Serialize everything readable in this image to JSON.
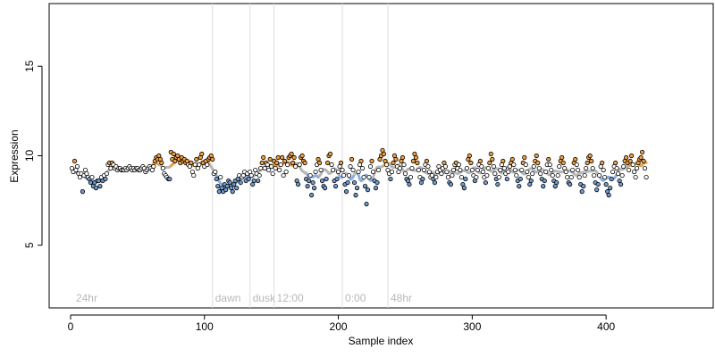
{
  "chart_data": {
    "type": "scatter",
    "xlabel": "Sample index",
    "ylabel": "Expression",
    "xlim": [
      -16,
      480
    ],
    "ylim": [
      1.5,
      18.5
    ],
    "x_ticks": [
      0,
      100,
      200,
      300,
      400
    ],
    "y_ticks": [
      5,
      10,
      15
    ],
    "grid": false,
    "legend": "none",
    "colors": {
      "point_stroke": "#000000",
      "high_fill": "#f0a040",
      "low_fill": "#6f9ad0",
      "trend_high": "#e8a050",
      "trend_low": "#8aaee0",
      "trend_neutral": "#b8b8b8",
      "divider": "#dddddd",
      "annotation": "#b8b8b8"
    },
    "annotations": [
      {
        "x": 2,
        "label": "24hr",
        "divider": false
      },
      {
        "x": 106,
        "label": "dawn",
        "divider": true
      },
      {
        "x": 134,
        "label": "dusk",
        "divider": true
      },
      {
        "x": 152,
        "label": "12:00",
        "divider": true
      },
      {
        "x": 203,
        "label": "0:00",
        "divider": true
      },
      {
        "x": 237,
        "label": "48hr",
        "divider": true
      }
    ],
    "series": [
      {
        "x_start": 1,
        "values": [
          9.3,
          9.1,
          9.7,
          9.2,
          9.4,
          9.0,
          8.8,
          9.0,
          8.0,
          8.9,
          9.2,
          9.0,
          8.8,
          8.7,
          8.5,
          8.8,
          8.3,
          8.5,
          8.2,
          8.6,
          8.6,
          8.3,
          8.8,
          8.6,
          8.9,
          8.7,
          9.0,
          9.5,
          9.6,
          9.3,
          9.6,
          9.5,
          9.3,
          9.4,
          9.2,
          9.3,
          9.3,
          9.2,
          9.2,
          9.2,
          9.3,
          9.2,
          9.3,
          9.4,
          9.3,
          9.2,
          9.3,
          9.2,
          9.3,
          9.3,
          9.2,
          9.2,
          9.3,
          9.4,
          9.3,
          9.1,
          9.2,
          9.3,
          9.4,
          9.3,
          9.2,
          9.4,
          9.7,
          9.9,
          9.8,
          10.0,
          9.8,
          9.6,
          9.3,
          9.0,
          8.9,
          8.8,
          8.7,
          8.7,
          10.2,
          9.8,
          10.1,
          9.7,
          9.9,
          10.0,
          9.8,
          9.6,
          9.9,
          9.7,
          9.8,
          9.6,
          9.7,
          9.5,
          9.4,
          9.6,
          9.1,
          8.9,
          9.5,
          9.8,
          9.3,
          9.5,
          9.9,
          10.1,
          9.6,
          9.4,
          9.7,
          9.5,
          9.8,
          9.9,
          10.0,
          9.8,
          9.0,
          9.1,
          8.7,
          8.3,
          8.0,
          8.8,
          8.2,
          8.0,
          8.4,
          8.1,
          8.3,
          8.6,
          8.5,
          8.2,
          8.0,
          8.4,
          8.6,
          8.2,
          8.7,
          8.9,
          8.5,
          8.8,
          8.9,
          9.1,
          8.6,
          9.0,
          8.7,
          9.1,
          8.9,
          8.4,
          8.6,
          9.2,
          9.0,
          8.6,
          8.9,
          9.3,
          9.6,
          9.9,
          9.3,
          9.6,
          9.5,
          9.2,
          9.8,
          9.4,
          9.0,
          9.7,
          9.3,
          9.6,
          9.9,
          9.2,
          9.5,
          9.9,
          8.9,
          9.7,
          9.1,
          9.5,
          9.9,
          10.0,
          10.1,
          9.6,
          9.9,
          9.4,
          8.6,
          8.4,
          9.5,
          9.9,
          10.0,
          9.7,
          9.6,
          8.7,
          8.3,
          8.6,
          8.9,
          7.8,
          8.5,
          8.2,
          9.1,
          9.5,
          9.8,
          9.6,
          9.2,
          8.6,
          8.3,
          8.2,
          8.7,
          9.6,
          10.0,
          10.1,
          9.5,
          9.2,
          8.6,
          8.3,
          8.7,
          9.1,
          9.4,
          9.6,
          9.2,
          8.9,
          8.4,
          8.0,
          8.5,
          8.9,
          9.4,
          9.8,
          9.2,
          8.5,
          7.8,
          8.2,
          9.1,
          9.5,
          9.7,
          9.3,
          8.8,
          8.3,
          7.3,
          8.1,
          8.8,
          9.4,
          9.7,
          9.1,
          8.6,
          8.2,
          8.5,
          9.2,
          9.8,
          10.0,
          10.3,
          10.1,
          9.7,
          9.5,
          9.2,
          9.0,
          8.7,
          9.1,
          9.6,
          10.0,
          9.8,
          9.4,
          9.1,
          9.3,
          9.7,
          9.9,
          9.5,
          9.0,
          8.7,
          8.6,
          8.4,
          8.8,
          9.3,
          9.7,
          10.1,
          9.9,
          9.6,
          9.2,
          8.8,
          8.5,
          8.7,
          9.2,
          9.5,
          9.7,
          9.4,
          9.1,
          8.8,
          8.9,
          8.7,
          8.5,
          8.8,
          9.1,
          9.4,
          9.2,
          9.0,
          9.3,
          9.6,
          9.4,
          9.1,
          8.8,
          8.5,
          8.4,
          8.9,
          9.2,
          9.5,
          9.6,
          9.3,
          9.5,
          9.2,
          8.8,
          8.4,
          8.2,
          8.7,
          9.3,
          9.8,
          10.0,
          9.6,
          9.2,
          8.9,
          8.6,
          8.8,
          9.2,
          9.5,
          9.7,
          9.4,
          9.1,
          8.8,
          8.5,
          8.9,
          9.3,
          9.6,
          10.1,
          9.8,
          9.4,
          9.0,
          8.7,
          8.4,
          8.8,
          9.2,
          9.5,
          9.7,
          9.3,
          9.0,
          8.7,
          9.1,
          9.4,
          9.6,
          9.8,
          9.5,
          9.2,
          8.9,
          8.6,
          8.3,
          8.7,
          9.2,
          9.6,
          9.9,
          9.5,
          9.1,
          8.8,
          8.4,
          8.6,
          9.0,
          9.4,
          9.7,
          10.0,
          9.6,
          9.3,
          9.0,
          8.7,
          8.3,
          8.6,
          9.1,
          9.5,
          9.8,
          9.5,
          9.2,
          8.9,
          8.6,
          8.3,
          8.5,
          8.9,
          9.4,
          9.7,
          9.9,
          9.6,
          9.3,
          9.1,
          8.8,
          8.5,
          8.4,
          8.8,
          9.2,
          9.6,
          9.8,
          9.5,
          9.2,
          8.8,
          8.4,
          8.0,
          8.3,
          8.9,
          9.3,
          9.6,
          9.9,
          10.0,
          9.7,
          9.3,
          8.9,
          8.5,
          8.1,
          8.4,
          8.9,
          9.4,
          9.6,
          9.2,
          8.8,
          8.4,
          8.0,
          7.8,
          8.2,
          8.7,
          9.1,
          9.4,
          9.6,
          9.3,
          9.0,
          8.6,
          8.4,
          8.9,
          9.4,
          9.7,
          9.9,
          9.6,
          9.2,
          9.7,
          10.0,
          9.5,
          9.1,
          8.8,
          9.3,
          9.6,
          9.8,
          9.9,
          10.2,
          9.7,
          9.3,
          8.8
        ]
      }
    ]
  }
}
